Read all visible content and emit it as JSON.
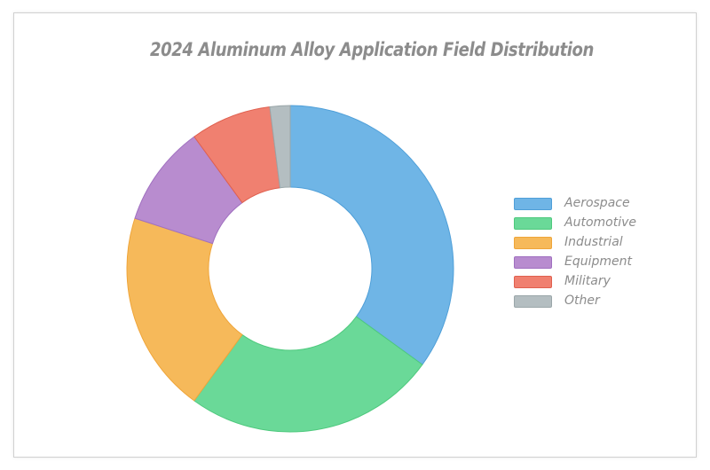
{
  "chart_data": {
    "type": "pie",
    "title": "2024 Aluminum Alloy Application Field Distribution",
    "categories": [
      "Aerospace",
      "Automotive",
      "Industrial",
      "Equipment",
      "Military",
      "Other"
    ],
    "values": [
      35,
      25,
      20,
      10,
      8,
      2
    ],
    "colors": [
      "#6fb5e6",
      "#6ad998",
      "#f6b95a",
      "#b88ccf",
      "#f08070",
      "#b4bec1"
    ],
    "stroke_colors": [
      "#4f9fd8",
      "#4ec97d",
      "#efa53a",
      "#a070c0",
      "#e0604f",
      "#9aa6a9"
    ],
    "donut": true,
    "legend_position": "right"
  }
}
